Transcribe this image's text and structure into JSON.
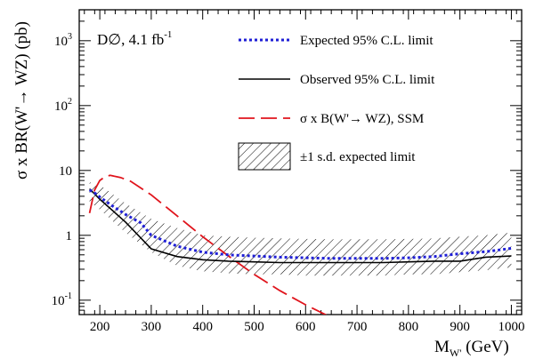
{
  "chart_data": {
    "type": "line",
    "annotation": {
      "text": "D∅, 4.1 fb",
      "sup": "-1"
    },
    "xlabel": {
      "main": "M",
      "sub": "W'",
      "rest": " (GeV)"
    },
    "ylabel": "σ x BR(W'→ WZ) (pb)",
    "x_range": [
      160,
      1020
    ],
    "y_range": [
      0.06,
      3000
    ],
    "y_scale": "log",
    "x_ticks": [
      "200",
      "300",
      "400",
      "500",
      "600",
      "700",
      "800",
      "900",
      "1000"
    ],
    "y_ticks": [
      {
        "value": 0.1,
        "base": "10",
        "exp": "-1"
      },
      {
        "value": 1,
        "base": "1",
        "exp": ""
      },
      {
        "value": 10,
        "base": "10",
        "exp": ""
      },
      {
        "value": 100,
        "base": "10",
        "exp": "2"
      },
      {
        "value": 1000,
        "base": "10",
        "exp": "3"
      }
    ],
    "legend_position": "top-right",
    "series": [
      {
        "name": "Expected 95% C.L. limit",
        "style": "dotted",
        "color": "#1f1fd6",
        "x": [
          180,
          190,
          200,
          220,
          250,
          280,
          300,
          350,
          400,
          450,
          500,
          550,
          600,
          650,
          700,
          750,
          800,
          850,
          900,
          950,
          1000
        ],
        "y": [
          5.0,
          4.5,
          3.9,
          3.0,
          2.1,
          1.55,
          1.0,
          0.68,
          0.55,
          0.5,
          0.48,
          0.46,
          0.45,
          0.44,
          0.44,
          0.44,
          0.45,
          0.47,
          0.52,
          0.56,
          0.63
        ]
      },
      {
        "name": "Observed 95% C.L. limit",
        "style": "solid",
        "color": "#000000",
        "x": [
          180,
          200,
          250,
          300,
          350,
          400,
          450,
          500,
          550,
          600,
          650,
          700,
          750,
          800,
          850,
          900,
          950,
          1000
        ],
        "y": [
          5.2,
          3.6,
          1.6,
          0.62,
          0.47,
          0.42,
          0.4,
          0.39,
          0.38,
          0.38,
          0.38,
          0.38,
          0.38,
          0.39,
          0.4,
          0.4,
          0.46,
          0.48
        ]
      },
      {
        "name": "σ x B(W'→ WZ), SSM",
        "style": "dashed",
        "color": "#e0141c",
        "x": [
          180,
          190,
          200,
          210,
          220,
          240,
          260,
          300,
          350,
          400,
          450,
          500,
          550,
          600,
          650,
          700
        ],
        "y": [
          2.2,
          5.0,
          7.0,
          8.0,
          8.4,
          7.8,
          6.8,
          4.2,
          2.0,
          0.95,
          0.48,
          0.25,
          0.14,
          0.085,
          0.054,
          0.036
        ]
      },
      {
        "name": "±1 s.d. expected limit",
        "style": "hatched",
        "color": "#000000",
        "x": [
          180,
          200,
          250,
          300,
          350,
          400,
          450,
          500,
          550,
          600,
          650,
          700,
          750,
          800,
          850,
          900,
          950,
          1000
        ],
        "y_low": [
          3.3,
          2.5,
          1.1,
          0.55,
          0.34,
          0.28,
          0.26,
          0.25,
          0.25,
          0.24,
          0.24,
          0.24,
          0.24,
          0.25,
          0.25,
          0.27,
          0.29,
          0.32
        ],
        "y_high": [
          6.6,
          6.0,
          3.1,
          1.8,
          1.3,
          1.0,
          0.95,
          0.92,
          0.9,
          0.88,
          0.87,
          0.87,
          0.87,
          0.88,
          0.9,
          0.95,
          1.0,
          1.1
        ]
      }
    ]
  }
}
